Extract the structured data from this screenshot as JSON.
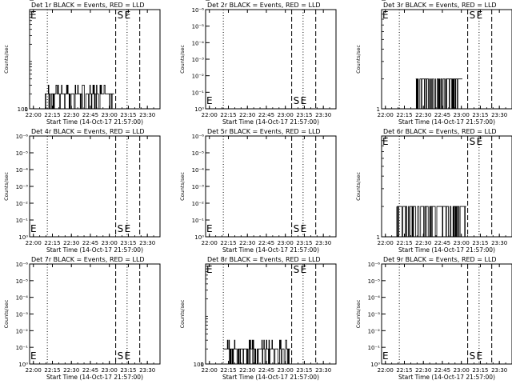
{
  "figure": {
    "start_label": "Start Time (14-Oct-17 21:57:00)",
    "y_axis_label": "Counts/sec"
  },
  "chart_data": [
    {
      "type": "line",
      "title": "Det 1r BLACK = Events, RED = LLD",
      "xlabel": "Start Time (14-Oct-17 21:57:00)",
      "ylabel": "Counts/sec",
      "x_range": [
        "21:57",
        "23:40"
      ],
      "x_ticks": [
        "22:00",
        "22:15",
        "22:30",
        "22:45",
        "23:00",
        "23:15",
        "23:30"
      ],
      "y_scale": "log",
      "y_range": [
        1,
        100
      ],
      "y_ticks": [
        "1",
        "10",
        "100"
      ],
      "markers": [
        "S",
        "E",
        "E"
      ],
      "vlines": [
        {
          "time": "22:11",
          "style": "dotted"
        },
        {
          "time": "23:05",
          "style": "dashed"
        },
        {
          "time": "23:14",
          "style": "dotted"
        },
        {
          "time": "23:24",
          "style": "dashed"
        }
      ],
      "series": [
        {
          "time_range": [
            "22:09",
            "23:04"
          ],
          "levels": [
            1,
            2,
            3
          ]
        }
      ]
    },
    {
      "type": "line",
      "title": "Det 2r BLACK = Events, RED = LLD",
      "xlabel": "Start Time (14-Oct-17 21:57:00)",
      "ylabel": "Counts/sec",
      "x_range": [
        "21:57",
        "23:40"
      ],
      "x_ticks": [
        "22:00",
        "22:15",
        "22:30",
        "22:45",
        "23:00",
        "23:15",
        "23:30"
      ],
      "y_scale": "log",
      "y_range": [
        1,
        1e-06
      ],
      "y_ticks": [
        "10⁰",
        "10⁻¹",
        "10⁻²",
        "10⁻³",
        "10⁻⁴",
        "10⁻⁵",
        "10⁻⁶"
      ],
      "markers": [
        "S",
        "E",
        "E"
      ],
      "vlines": [
        {
          "time": "22:11",
          "style": "dotted"
        },
        {
          "time": "23:05",
          "style": "dashed"
        },
        {
          "time": "23:14",
          "style": "dotted"
        },
        {
          "time": "23:24",
          "style": "dashed"
        }
      ],
      "series": []
    },
    {
      "type": "line",
      "title": "Det 3r BLACK = Events, RED = LLD",
      "xlabel": "Start Time (14-Oct-17 21:57:00)",
      "ylabel": "Counts/sec",
      "x_range": [
        "21:57",
        "23:40"
      ],
      "x_ticks": [
        "22:00",
        "22:15",
        "22:30",
        "22:45",
        "23:00",
        "23:15",
        "23:30"
      ],
      "y_scale": "log",
      "y_range": [
        1,
        10
      ],
      "y_ticks": [
        "1",
        "10"
      ],
      "markers": [
        "S",
        "E",
        "E"
      ],
      "vlines": [
        {
          "time": "22:11",
          "style": "dotted"
        },
        {
          "time": "23:05",
          "style": "dashed"
        },
        {
          "time": "23:14",
          "style": "dotted"
        },
        {
          "time": "23:24",
          "style": "dashed"
        }
      ],
      "series": [
        {
          "time_range": [
            "22:24",
            "23:01"
          ],
          "levels": [
            1,
            2
          ]
        }
      ]
    },
    {
      "type": "line",
      "title": "Det 4r BLACK = Events, RED = LLD",
      "xlabel": "Start Time (14-Oct-17 21:57:00)",
      "ylabel": "Counts/sec",
      "x_range": [
        "21:57",
        "23:40"
      ],
      "x_ticks": [
        "22:00",
        "22:15",
        "22:30",
        "22:45",
        "23:00",
        "23:15",
        "23:30"
      ],
      "y_scale": "log",
      "y_range": [
        1,
        1e-06
      ],
      "y_ticks": [
        "10⁰",
        "10⁻¹",
        "10⁻²",
        "10⁻³",
        "10⁻⁴",
        "10⁻⁵",
        "10⁻⁶"
      ],
      "markers": [
        "S",
        "E",
        "E"
      ],
      "vlines": [
        {
          "time": "22:11",
          "style": "dotted"
        },
        {
          "time": "23:05",
          "style": "dashed"
        },
        {
          "time": "23:14",
          "style": "dotted"
        },
        {
          "time": "23:24",
          "style": "dashed"
        }
      ],
      "series": []
    },
    {
      "type": "line",
      "title": "Det 5r BLACK = Events, RED = LLD",
      "xlabel": "Start Time (14-Oct-17 21:57:00)",
      "ylabel": "Counts/sec",
      "x_range": [
        "21:57",
        "23:40"
      ],
      "x_ticks": [
        "22:00",
        "22:15",
        "22:30",
        "22:45",
        "23:00",
        "23:15",
        "23:30"
      ],
      "y_scale": "log",
      "y_range": [
        1,
        1e-06
      ],
      "y_ticks": [
        "10⁰",
        "10⁻¹",
        "10⁻²",
        "10⁻³",
        "10⁻⁴",
        "10⁻⁵",
        "10⁻⁶"
      ],
      "markers": [
        "S",
        "E",
        "E"
      ],
      "vlines": [
        {
          "time": "22:11",
          "style": "dotted"
        },
        {
          "time": "23:05",
          "style": "dashed"
        },
        {
          "time": "23:14",
          "style": "dotted"
        },
        {
          "time": "23:24",
          "style": "dashed"
        }
      ],
      "series": []
    },
    {
      "type": "line",
      "title": "Det 6r BLACK = Events, RED = LLD",
      "xlabel": "Start Time (14-Oct-17 21:57:00)",
      "ylabel": "Counts/sec",
      "x_range": [
        "21:57",
        "23:40"
      ],
      "x_ticks": [
        "22:00",
        "22:15",
        "22:30",
        "22:45",
        "23:00",
        "23:15",
        "23:30"
      ],
      "y_scale": "log",
      "y_range": [
        1,
        10
      ],
      "y_ticks": [
        "1",
        "10"
      ],
      "markers": [
        "S",
        "E",
        "E"
      ],
      "vlines": [
        {
          "time": "22:11",
          "style": "dotted"
        },
        {
          "time": "23:05",
          "style": "dashed"
        },
        {
          "time": "23:14",
          "style": "dotted"
        },
        {
          "time": "23:24",
          "style": "dashed"
        }
      ],
      "series": [
        {
          "time_range": [
            "22:09",
            "23:04"
          ],
          "levels": [
            1,
            2
          ]
        }
      ]
    },
    {
      "type": "line",
      "title": "Det 7r BLACK = Events, RED = LLD",
      "xlabel": "Start Time (14-Oct-17 21:57:00)",
      "ylabel": "Counts/sec",
      "x_range": [
        "21:57",
        "23:40"
      ],
      "x_ticks": [
        "22:00",
        "22:15",
        "22:30",
        "22:45",
        "23:00",
        "23:15",
        "23:30"
      ],
      "y_scale": "log",
      "y_range": [
        1,
        1e-06
      ],
      "y_ticks": [
        "10⁰",
        "10⁻¹",
        "10⁻²",
        "10⁻³",
        "10⁻⁴",
        "10⁻⁵",
        "10⁻⁶"
      ],
      "markers": [
        "S",
        "E",
        "E"
      ],
      "vlines": [
        {
          "time": "22:11",
          "style": "dotted"
        },
        {
          "time": "23:05",
          "style": "dashed"
        },
        {
          "time": "23:14",
          "style": "dotted"
        },
        {
          "time": "23:24",
          "style": "dashed"
        }
      ],
      "series": []
    },
    {
      "type": "line",
      "title": "Det 8r BLACK = Events, RED = LLD",
      "xlabel": "Start Time (14-Oct-17 21:57:00)",
      "ylabel": "Counts/sec",
      "x_range": [
        "21:57",
        "23:40"
      ],
      "x_ticks": [
        "22:00",
        "22:15",
        "22:30",
        "22:45",
        "23:00",
        "23:15",
        "23:30"
      ],
      "y_scale": "log",
      "y_range": [
        1,
        100
      ],
      "y_ticks": [
        "1",
        "10",
        "100"
      ],
      "markers": [
        "S",
        "E",
        "E"
      ],
      "vlines": [
        {
          "time": "22:11",
          "style": "dotted"
        },
        {
          "time": "23:05",
          "style": "dashed"
        },
        {
          "time": "23:14",
          "style": "dotted"
        },
        {
          "time": "23:24",
          "style": "dashed"
        }
      ],
      "series": [
        {
          "time_range": [
            "22:11",
            "23:04"
          ],
          "levels": [
            1,
            2,
            3
          ]
        }
      ]
    },
    {
      "type": "line",
      "title": "Det 9r BLACK = Events, RED = LLD",
      "xlabel": "Start Time (14-Oct-17 21:57:00)",
      "ylabel": "Counts/sec",
      "x_range": [
        "21:57",
        "23:40"
      ],
      "x_ticks": [
        "22:00",
        "22:15",
        "22:30",
        "22:45",
        "23:00",
        "23:15",
        "23:30"
      ],
      "y_scale": "log",
      "y_range": [
        1,
        1e-06
      ],
      "y_ticks": [
        "10⁰",
        "10⁻¹",
        "10⁻²",
        "10⁻³",
        "10⁻⁴",
        "10⁻⁵",
        "10⁻⁶"
      ],
      "markers": [
        "S",
        "E",
        "E"
      ],
      "vlines": [
        {
          "time": "22:11",
          "style": "dotted"
        },
        {
          "time": "23:05",
          "style": "dashed"
        },
        {
          "time": "23:14",
          "style": "dotted"
        },
        {
          "time": "23:24",
          "style": "dashed"
        }
      ],
      "series": []
    }
  ]
}
